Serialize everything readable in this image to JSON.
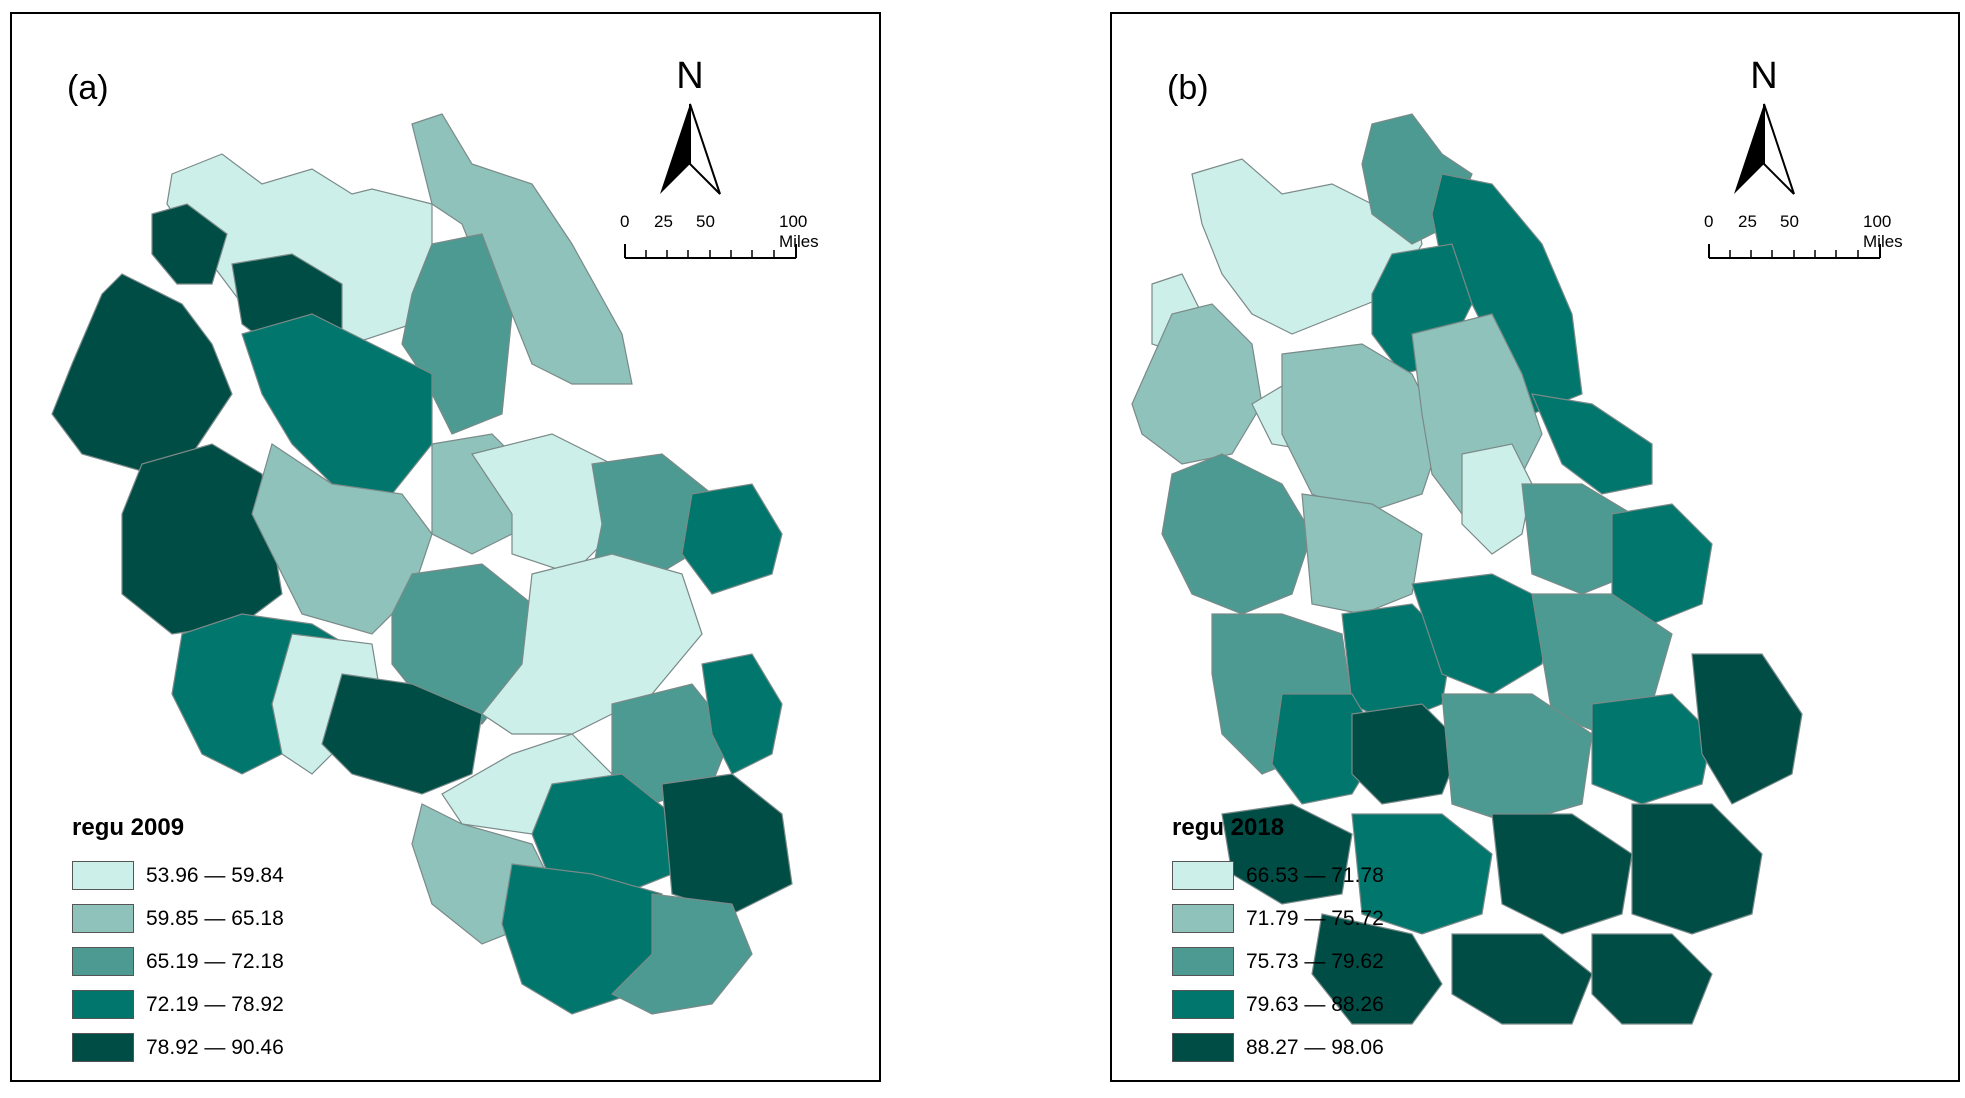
{
  "panels": [
    {
      "label": "(a)",
      "north_label": "N",
      "scale": {
        "ticks": [
          "0",
          "25",
          "50",
          "100 Miles"
        ]
      },
      "legend": {
        "title": "regu 2009",
        "items": [
          {
            "range": "53.96 — 59.84",
            "color": "#cdefea"
          },
          {
            "range": "59.85 — 65.18",
            "color": "#8ec2bb"
          },
          {
            "range": "65.19 — 72.18",
            "color": "#4c9a91"
          },
          {
            "range": "72.19 — 78.92",
            "color": "#00766c"
          },
          {
            "range": "78.92 — 90.46",
            "color": "#004d46"
          }
        ]
      }
    },
    {
      "label": "(b)",
      "north_label": "N",
      "scale": {
        "ticks": [
          "0",
          "25",
          "50",
          "100 Miles"
        ]
      },
      "legend": {
        "title": "regu 2018",
        "items": [
          {
            "range": "66.53 — 71.78",
            "color": "#cdefea"
          },
          {
            "range": "71.79 — 75.72",
            "color": "#8ec2bb"
          },
          {
            "range": "75.73 — 79.62",
            "color": "#4c9a91"
          },
          {
            "range": "79.63 — 88.26",
            "color": "#00766c"
          },
          {
            "range": "88.27 — 98.06",
            "color": "#004d46"
          }
        ]
      }
    }
  ]
}
